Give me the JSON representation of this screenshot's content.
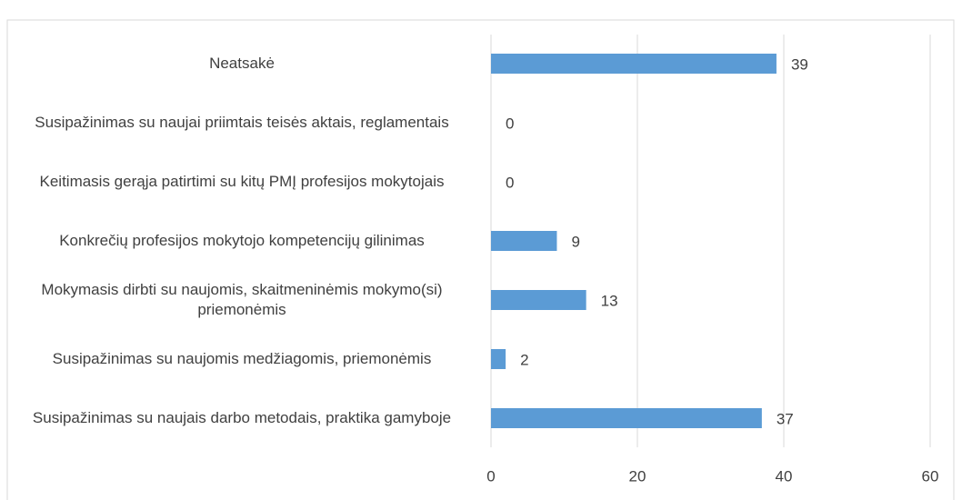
{
  "chart_data": {
    "type": "barh",
    "categories": [
      "Neatsakė",
      "Susipažinimas su naujai priimtais teisės aktais, reglamentais",
      "Keitimasis gerąja patirtimi su kitų PMĮ profesijos mokytojais",
      "Konkrečių profesijos mokytojo kompetencijų gilinimas",
      "Mokymasis dirbti su naujomis, skaitmeninėmis mokymo(si) priemonėmis",
      "Susipažinimas su naujomis medžiagomis, priemonėmis",
      "Susipažinimas su naujais darbo metodais, praktika gamyboje"
    ],
    "values": [
      39,
      0,
      0,
      9,
      13,
      2,
      37
    ],
    "color": "#5b9bd5",
    "xlim": [
      0,
      60
    ],
    "xticks": [
      0,
      20,
      40,
      60
    ],
    "grid": true
  }
}
